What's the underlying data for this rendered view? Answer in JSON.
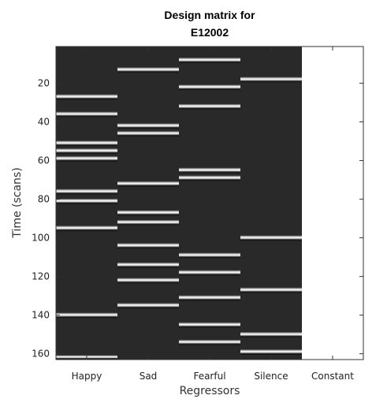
{
  "chart_data": {
    "type": "heatmap",
    "title_lines": [
      "Design matrix for",
      "E12002"
    ],
    "xlabel": "Regressors",
    "ylabel": "Time (scans)",
    "categories": [
      "Happy",
      "Sad",
      "Fearful",
      "Silence",
      "Constant"
    ],
    "ytick_labels": [
      "20",
      "40",
      "60",
      "80",
      "100",
      "120",
      "140",
      "160"
    ],
    "ytick_values": [
      20,
      40,
      60,
      80,
      100,
      120,
      140,
      160
    ],
    "ylim": [
      1,
      163
    ],
    "y_direction": "reversed",
    "colormap": "gray",
    "constant_value": 1,
    "event_duration_scans": 3,
    "events": {
      "Happy": [
        27,
        36,
        51,
        55,
        59,
        76,
        81,
        95,
        140,
        162
      ],
      "Sad": [
        13,
        42,
        46,
        72,
        87,
        92,
        104,
        114,
        122,
        135
      ],
      "Fearful": [
        8,
        22,
        32,
        65,
        69,
        109,
        118,
        131,
        145,
        154
      ],
      "Silence": [
        18,
        100,
        127,
        150,
        159
      ]
    },
    "colors": {
      "background": "#292929",
      "peak": "#ffffff",
      "trough": "#111111",
      "constant": "#ffffff"
    }
  }
}
